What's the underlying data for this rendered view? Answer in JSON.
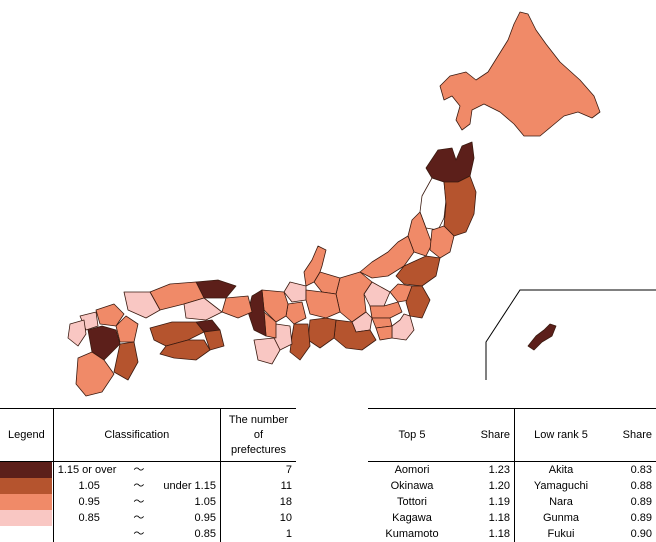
{
  "colors": {
    "c1": "#5c1f1a",
    "c2": "#b5542e",
    "c3": "#f08a68",
    "c4": "#f9c7c3",
    "c5": "#ffffff",
    "border": "#3a1a10"
  },
  "legend": {
    "headers": {
      "legend": "Legend",
      "classification": "Classification",
      "count": "The number of prefectures"
    },
    "tilde": "〜",
    "rows": [
      {
        "color": "#5c1f1a",
        "low": "1.15 or over",
        "high": "",
        "count": "7"
      },
      {
        "color": "#b5542e",
        "low": "1.05",
        "high": "under 1.15",
        "count": "11"
      },
      {
        "color": "#f08a68",
        "low": "0.95",
        "high": "1.05",
        "count": "18"
      },
      {
        "color": "#f9c7c3",
        "low": "0.85",
        "high": "0.95",
        "count": "10"
      },
      {
        "color": "#ffffff",
        "low": "",
        "high": "0.85",
        "count": "1"
      }
    ]
  },
  "ranking": {
    "headers": {
      "top": "Top 5",
      "share": "Share",
      "low": "Low rank 5",
      "share2": "Share"
    },
    "top": [
      {
        "name": "Aomori",
        "share": "1.23"
      },
      {
        "name": "Okinawa",
        "share": "1.20"
      },
      {
        "name": "Tottori",
        "share": "1.19"
      },
      {
        "name": "Kagawa",
        "share": "1.18"
      },
      {
        "name": "Kumamoto",
        "share": "1.18"
      }
    ],
    "low": [
      {
        "name": "Akita",
        "share": "0.83"
      },
      {
        "name": "Yamaguchi",
        "share": "0.88"
      },
      {
        "name": "Nara",
        "share": "0.89"
      },
      {
        "name": "Gunma",
        "share": "0.89"
      },
      {
        "name": "Fukui",
        "share": "0.90"
      }
    ]
  }
}
